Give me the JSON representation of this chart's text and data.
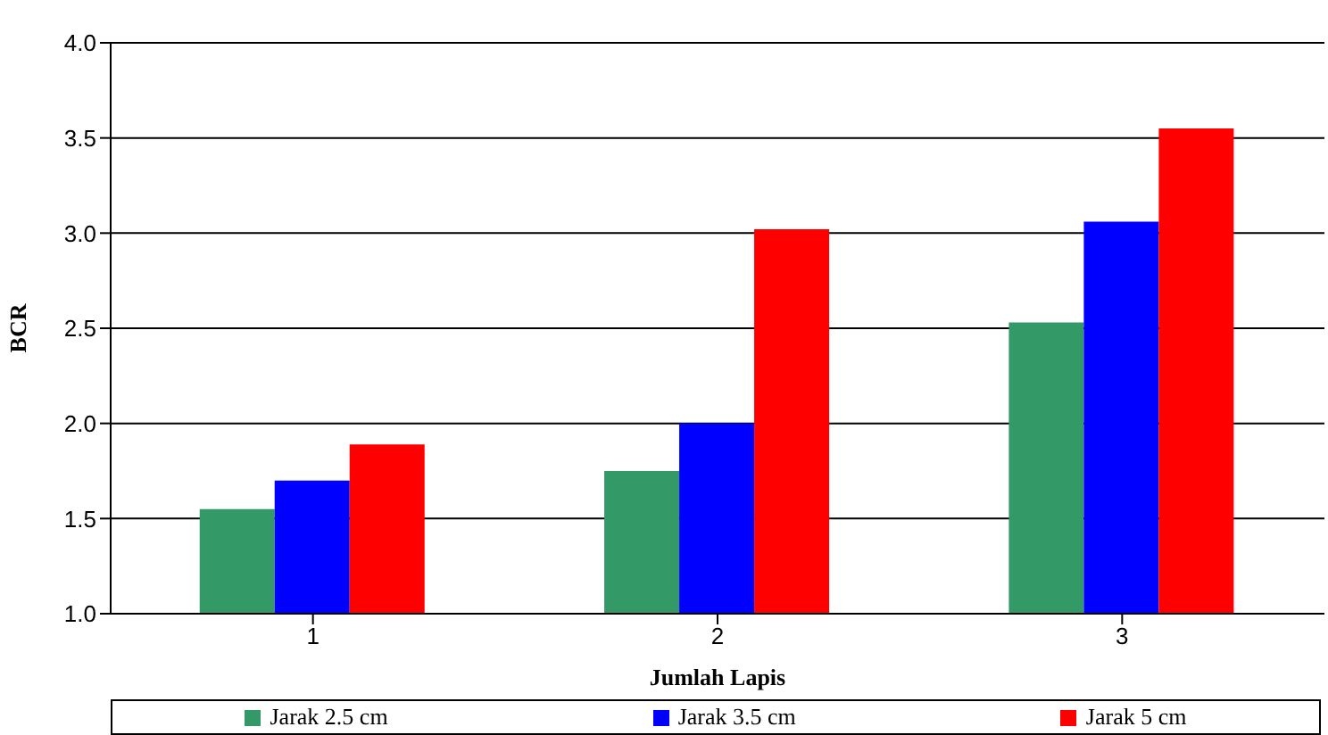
{
  "chart_data": {
    "type": "bar",
    "xlabel": "Jumlah Lapis",
    "ylabel": "BCR",
    "categories": [
      "1",
      "2",
      "3"
    ],
    "series": [
      {
        "name": "Jarak 2.5 cm",
        "color": "#339966",
        "values": [
          1.55,
          1.75,
          2.53
        ]
      },
      {
        "name": "Jarak 3.5 cm",
        "color": "#0000ff",
        "values": [
          1.7,
          2.0,
          3.06
        ]
      },
      {
        "name": "Jarak 5 cm",
        "color": "#ff0000",
        "values": [
          1.89,
          3.02,
          3.55
        ]
      }
    ],
    "ylim": [
      1.0,
      4.0
    ],
    "yticks": [
      {
        "value": 1,
        "label": "1.0"
      },
      {
        "value": 1.5,
        "label": "1.5"
      },
      {
        "value": 2,
        "label": "2.0"
      },
      {
        "value": 2.5,
        "label": "2.5"
      },
      {
        "value": 3,
        "label": "3.0"
      },
      {
        "value": 3.5,
        "label": "3.5"
      },
      {
        "value": 4,
        "label": "4.0"
      }
    ],
    "grid": "y",
    "legend": "bottom"
  }
}
